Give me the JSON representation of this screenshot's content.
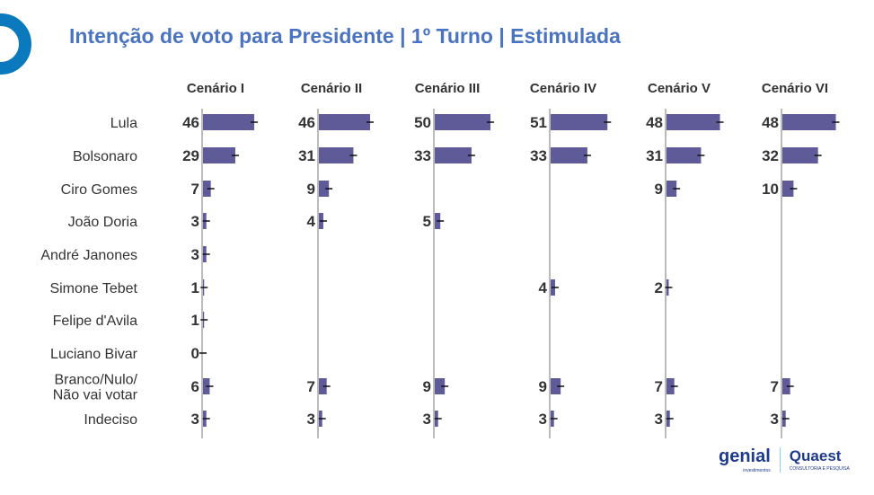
{
  "title": "Intenção de voto para Presidente | 1º Turno | Estimulada",
  "chart_data": {
    "type": "bar",
    "orientation": "horizontal",
    "small_multiples": true,
    "title": "Intenção de voto para Presidente | 1º Turno | Estimulada",
    "bar_color": "#5f5b99",
    "categories": [
      "Lula",
      "Bolsonaro",
      "Ciro Gomes",
      "João Doria",
      "André Janones",
      "Simone Tebet",
      "Felipe d'Avila",
      "Luciano Bivar",
      "Branco/Nulo/\nNão vai votar",
      "Indeciso"
    ],
    "series": [
      {
        "name": "Cenário I",
        "values": [
          46,
          29,
          7,
          3,
          3,
          1,
          1,
          0,
          6,
          3
        ]
      },
      {
        "name": "Cenário II",
        "values": [
          46,
          31,
          9,
          4,
          null,
          null,
          null,
          null,
          7,
          3
        ]
      },
      {
        "name": "Cenário III",
        "values": [
          50,
          33,
          null,
          5,
          null,
          null,
          null,
          null,
          9,
          3
        ]
      },
      {
        "name": "Cenário IV",
        "values": [
          51,
          33,
          null,
          null,
          null,
          4,
          null,
          null,
          9,
          3
        ]
      },
      {
        "name": "Cenário V",
        "values": [
          48,
          31,
          9,
          null,
          null,
          2,
          null,
          null,
          7,
          3
        ]
      },
      {
        "name": "Cenário VI",
        "values": [
          48,
          32,
          10,
          null,
          null,
          null,
          null,
          null,
          7,
          3
        ]
      }
    ],
    "error_bars": true
  },
  "logos": {
    "genial": "genial",
    "genial_sub": "investimentos",
    "quaest": "Quaest",
    "quaest_sub": "CONSULTORIA E PESQUISA"
  }
}
